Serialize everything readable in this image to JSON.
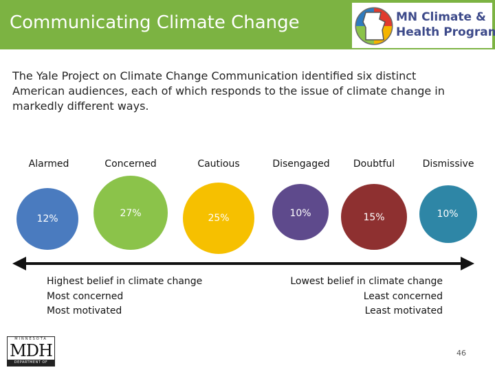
{
  "header": {
    "title": "Communicating Climate Change",
    "logo_line1": "MN Climate &",
    "logo_line2": "Health Program",
    "logo_colors": [
      "#e03a2e",
      "#f4b400",
      "#8bc34a",
      "#2e7bbf",
      "#7d3c98"
    ]
  },
  "intro": {
    "line1": "The Yale Project on Climate Change Communication identified six distinct",
    "line2": "American audiences, each of which responds to the issue of climate change in",
    "line3": "markedly different ways."
  },
  "segments": [
    {
      "label": "Alarmed",
      "percent": "12%",
      "color": "#4a7bbf"
    },
    {
      "label": "Concerned",
      "percent": "27%",
      "color": "#8bc34a"
    },
    {
      "label": "Cautious",
      "percent": "25%",
      "color": "#f6c000"
    },
    {
      "label": "Disengaged",
      "percent": "10%",
      "color": "#5e4a8c"
    },
    {
      "label": "Doubtful",
      "percent": "15%",
      "color": "#8e3030"
    },
    {
      "label": "Dismissive",
      "percent": "10%",
      "color": "#2e86a6"
    }
  ],
  "left_notes": {
    "line1": "Highest belief in climate change",
    "line2": "Most concerned",
    "line3": "Most motivated"
  },
  "right_notes": {
    "line1": "Lowest belief in climate change",
    "line2": "Least concerned",
    "line3": "Least motivated"
  },
  "footer": {
    "mdh_top": "MINNESOTA",
    "mdh_main": "MDH",
    "mdh_bottom": "DEPARTMENT OF HEALTH",
    "page_number": "46"
  }
}
